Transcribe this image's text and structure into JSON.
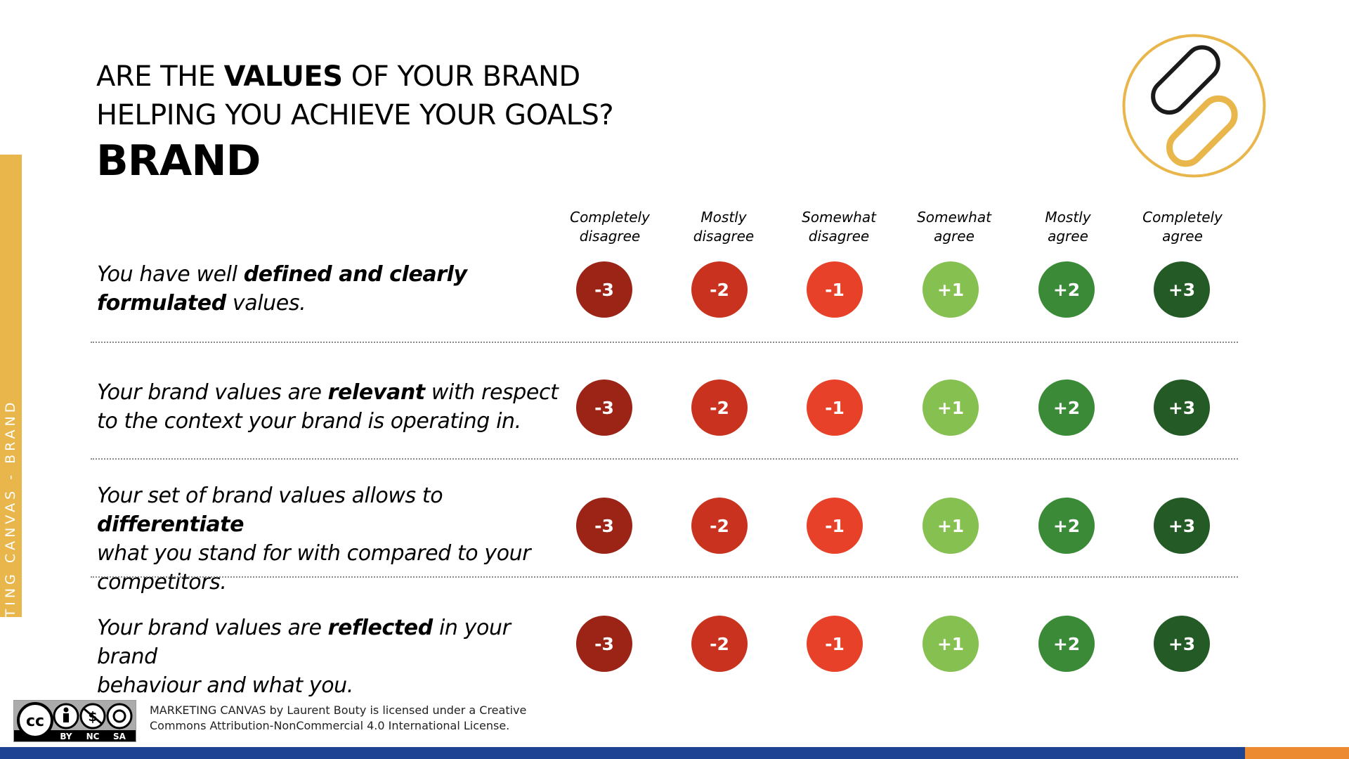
{
  "side_label": "MARKETING CANVAS - BRAND",
  "header": {
    "line1_pre": "ARE THE ",
    "line1_bold": "VALUES",
    "line1_post": " OF YOUR BRAND",
    "line2": "HELPING YOU ACHIEVE YOUR GOALS?",
    "section": "BRAND"
  },
  "scale": {
    "labels": [
      [
        "Completely",
        "disagree"
      ],
      [
        "Mostly",
        "disagree"
      ],
      [
        "Somewhat",
        "disagree"
      ],
      [
        "Somewhat",
        "agree"
      ],
      [
        "Mostly",
        "agree"
      ],
      [
        "Completely",
        "agree"
      ]
    ],
    "values": [
      "-3",
      "-2",
      "-1",
      "+1",
      "+2",
      "+3"
    ],
    "colors": [
      "#9b2417",
      "#c9321f",
      "#e8412a",
      "#86c050",
      "#3a8a37",
      "#245a25"
    ]
  },
  "questions": [
    {
      "parts": [
        {
          "t": "You have well "
        },
        {
          "t": "defined and clearly",
          "b": true
        },
        {
          "br": true
        },
        {
          "t": "formulated",
          "b": true
        },
        {
          "t": " values."
        }
      ]
    },
    {
      "parts": [
        {
          "t": "Your brand values are "
        },
        {
          "t": "relevant",
          "b": true
        },
        {
          "t": " with respect"
        },
        {
          "br": true
        },
        {
          "t": "to the context your brand is operating in."
        }
      ]
    },
    {
      "parts": [
        {
          "t": "Your set of brand values allows to "
        },
        {
          "t": "differentiate",
          "b": true
        },
        {
          "br": true
        },
        {
          "t": "what you stand for with compared to your"
        },
        {
          "br": true
        },
        {
          "t": "competitors."
        }
      ]
    },
    {
      "parts": [
        {
          "t": "Your brand values are "
        },
        {
          "t": "reflected",
          "b": true
        },
        {
          "t": " in your brand"
        },
        {
          "br": true
        },
        {
          "t": "behaviour and what you."
        }
      ]
    }
  ],
  "cc_badge": {
    "labels": [
      "BY",
      "NC",
      "SA"
    ]
  },
  "license": {
    "line1": "MARKETING CANVAS by Laurent Bouty is licensed under a Creative",
    "line2": "Commons Attribution-NonCommercial 4.0 International License."
  }
}
